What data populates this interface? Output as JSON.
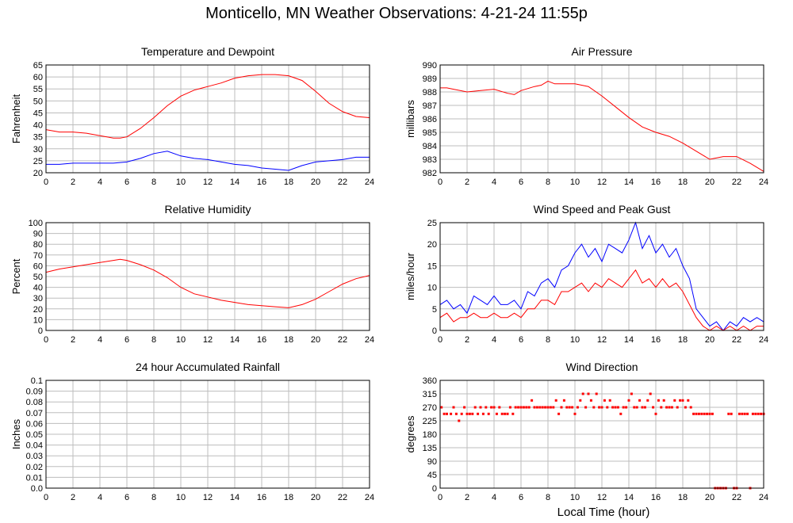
{
  "title": "Monticello, MN Weather Observations: 4-21-24 11:55p",
  "xlabel": "Local Time (hour)",
  "colors": {
    "red": "#ff0000",
    "blue": "#0000ff"
  },
  "chart_data": [
    {
      "type": "line",
      "title": "Temperature and Dewpoint",
      "ylabel": "Fahrenheit",
      "xlim": [
        0,
        24
      ],
      "ylim": [
        20,
        65
      ],
      "xticks": [
        "0",
        "2",
        "4",
        "6",
        "8",
        "10",
        "12",
        "14",
        "16",
        "18",
        "20",
        "22",
        "24"
      ],
      "yticks": [
        "20",
        "25",
        "30",
        "35",
        "40",
        "45",
        "50",
        "55",
        "60",
        "65"
      ],
      "grid": true,
      "series": [
        {
          "color": "#ff0000",
          "x": [
            0,
            1,
            2,
            3,
            4,
            5,
            5.5,
            6,
            7,
            8,
            9,
            10,
            11,
            12,
            13,
            14,
            15,
            16,
            16.5,
            17,
            18,
            19,
            20,
            21,
            22,
            23,
            24
          ],
          "y": [
            38,
            37,
            37,
            36.5,
            35.5,
            34.5,
            34.5,
            35,
            38.5,
            43,
            48,
            52,
            54.5,
            56,
            57.5,
            59.5,
            60.5,
            61,
            61,
            61,
            60.5,
            58.5,
            54,
            49,
            45.5,
            43.5,
            43
          ]
        },
        {
          "color": "#0000ff",
          "x": [
            0,
            1,
            2,
            3,
            4,
            5,
            6,
            7,
            8,
            9,
            10,
            11,
            12,
            13,
            14,
            15,
            16,
            17,
            18,
            19,
            20,
            21,
            22,
            23,
            24
          ],
          "y": [
            23.5,
            23.5,
            24,
            24,
            24,
            24,
            24.5,
            26,
            28,
            29,
            27,
            26,
            25.5,
            24.5,
            23.5,
            23,
            22,
            21.5,
            21,
            23,
            24.5,
            25,
            25.5,
            26.5,
            26.5
          ]
        }
      ]
    },
    {
      "type": "line",
      "title": "Air Pressure",
      "ylabel": "millibars",
      "xlim": [
        0,
        24
      ],
      "ylim": [
        982,
        990
      ],
      "xticks": [
        "0",
        "2",
        "4",
        "6",
        "8",
        "10",
        "12",
        "14",
        "16",
        "18",
        "20",
        "22",
        "24"
      ],
      "yticks": [
        "982",
        "983",
        "984",
        "985",
        "986",
        "987",
        "988",
        "989",
        "990"
      ],
      "grid": true,
      "series": [
        {
          "color": "#ff0000",
          "x": [
            0,
            0.5,
            1,
            2,
            3,
            4,
            5,
            5.5,
            6,
            7,
            7.5,
            8,
            8.5,
            9,
            10,
            11,
            12,
            13,
            14,
            15,
            16,
            17,
            18,
            19,
            19.5,
            20,
            21,
            22,
            23,
            24
          ],
          "y": [
            988.3,
            988.3,
            988.2,
            988,
            988.1,
            988.2,
            987.9,
            987.8,
            988.1,
            988.4,
            988.5,
            988.8,
            988.6,
            988.6,
            988.6,
            988.4,
            987.7,
            986.9,
            986.1,
            985.4,
            985,
            984.7,
            984.2,
            983.6,
            983.3,
            983,
            983.2,
            983.2,
            982.7,
            982.1
          ]
        }
      ]
    },
    {
      "type": "line",
      "title": "Relative Humidity",
      "ylabel": "Percent",
      "xlim": [
        0,
        24
      ],
      "ylim": [
        0,
        100
      ],
      "xticks": [
        "0",
        "2",
        "4",
        "6",
        "8",
        "10",
        "12",
        "14",
        "16",
        "18",
        "20",
        "22",
        "24"
      ],
      "yticks": [
        "0",
        "10",
        "20",
        "30",
        "40",
        "50",
        "60",
        "70",
        "80",
        "90",
        "100"
      ],
      "grid": true,
      "series": [
        {
          "color": "#ff0000",
          "x": [
            0,
            1,
            2,
            3,
            4,
            5,
            5.5,
            6,
            7,
            8,
            9,
            10,
            11,
            12,
            13,
            14,
            15,
            16,
            17,
            18,
            19,
            20,
            21,
            22,
            23,
            24
          ],
          "y": [
            54,
            57,
            59,
            61,
            63,
            65,
            66,
            65,
            61,
            56,
            49,
            40,
            34,
            31,
            28,
            26,
            24,
            23,
            22,
            21,
            24,
            29,
            36,
            43,
            48,
            51
          ]
        }
      ]
    },
    {
      "type": "line",
      "title": "Wind Speed and Peak Gust",
      "ylabel": "miles/hour",
      "xlim": [
        0,
        24
      ],
      "ylim": [
        0,
        25
      ],
      "xticks": [
        "0",
        "2",
        "4",
        "6",
        "8",
        "10",
        "12",
        "14",
        "16",
        "18",
        "20",
        "22",
        "24"
      ],
      "yticks": [
        "0",
        "5",
        "10",
        "15",
        "20",
        "25"
      ],
      "grid": true,
      "series": [
        {
          "color": "#0000ff",
          "x": [
            0,
            0.5,
            1,
            1.5,
            2,
            2.5,
            3,
            3.5,
            4,
            4.5,
            5,
            5.5,
            6,
            6.5,
            7,
            7.5,
            8,
            8.5,
            9,
            9.5,
            10,
            10.5,
            11,
            11.5,
            12,
            12.5,
            13,
            13.5,
            14,
            14.5,
            15,
            15.5,
            16,
            16.5,
            17,
            17.5,
            18,
            18.5,
            19,
            19.5,
            20,
            20.5,
            21,
            21.5,
            22,
            22.5,
            23,
            23.5,
            24
          ],
          "y": [
            6,
            7,
            5,
            6,
            4,
            8,
            7,
            6,
            8,
            6,
            6,
            7,
            5,
            9,
            8,
            11,
            12,
            10,
            14,
            15,
            18,
            20,
            17,
            19,
            16,
            20,
            19,
            18,
            21,
            25,
            19,
            22,
            18,
            20,
            17,
            19,
            15,
            12,
            5,
            3,
            1,
            2,
            0,
            2,
            1,
            3,
            2,
            3,
            2
          ]
        },
        {
          "color": "#ff0000",
          "x": [
            0,
            0.5,
            1,
            1.5,
            2,
            2.5,
            3,
            3.5,
            4,
            4.5,
            5,
            5.5,
            6,
            6.5,
            7,
            7.5,
            8,
            8.5,
            9,
            9.5,
            10,
            10.5,
            11,
            11.5,
            12,
            12.5,
            13,
            13.5,
            14,
            14.5,
            15,
            15.5,
            16,
            16.5,
            17,
            17.5,
            18,
            18.5,
            19,
            19.5,
            20,
            20.5,
            21,
            21.5,
            22,
            22.5,
            23,
            23.5,
            24
          ],
          "y": [
            3,
            4,
            2,
            3,
            3,
            4,
            3,
            3,
            4,
            3,
            3,
            4,
            3,
            5,
            5,
            7,
            7,
            6,
            9,
            9,
            10,
            11,
            9,
            11,
            10,
            12,
            11,
            10,
            12,
            14,
            11,
            12,
            10,
            12,
            10,
            11,
            9,
            6,
            3,
            1,
            0,
            1,
            0,
            1,
            0,
            1,
            0,
            1,
            1
          ]
        }
      ]
    },
    {
      "type": "line",
      "title": "24 hour Accumulated Rainfall",
      "ylabel": "Inches",
      "xlim": [
        0,
        24
      ],
      "ylim": [
        0,
        0.1
      ],
      "xticks": [
        "0",
        "2",
        "4",
        "6",
        "8",
        "10",
        "12",
        "14",
        "16",
        "18",
        "20",
        "22",
        "24"
      ],
      "yticks": [
        "0.0",
        "0.01",
        "0.02",
        "0.03",
        "0.04",
        "0.05",
        "0.06",
        "0.07",
        "0.08",
        "0.09",
        "0.1"
      ],
      "grid": true,
      "series": [
        {
          "color": "#ff0000",
          "x": [
            0,
            24
          ],
          "y": [
            0,
            0
          ]
        }
      ]
    },
    {
      "type": "scatter",
      "title": "Wind Direction",
      "ylabel": "degrees",
      "xlim": [
        0,
        24
      ],
      "ylim": [
        0,
        360
      ],
      "xticks": [
        "0",
        "2",
        "4",
        "6",
        "8",
        "10",
        "12",
        "14",
        "16",
        "18",
        "20",
        "22",
        "24"
      ],
      "yticks": [
        "0",
        "45",
        "90",
        "135",
        "180",
        "225",
        "270",
        "315",
        "360"
      ],
      "grid": true,
      "series": [
        {
          "color": "#ff0000",
          "points": [
            [
              0.1,
              270
            ],
            [
              0.3,
              248
            ],
            [
              0.5,
              248
            ],
            [
              0.8,
              248
            ],
            [
              1.0,
              270
            ],
            [
              1.2,
              248
            ],
            [
              1.4,
              225
            ],
            [
              1.6,
              248
            ],
            [
              1.8,
              270
            ],
            [
              2.0,
              248
            ],
            [
              2.2,
              248
            ],
            [
              2.4,
              248
            ],
            [
              2.6,
              270
            ],
            [
              2.8,
              248
            ],
            [
              3.0,
              270
            ],
            [
              3.2,
              248
            ],
            [
              3.4,
              270
            ],
            [
              3.6,
              248
            ],
            [
              3.8,
              270
            ],
            [
              4.0,
              270
            ],
            [
              4.2,
              248
            ],
            [
              4.4,
              270
            ],
            [
              4.6,
              248
            ],
            [
              4.8,
              248
            ],
            [
              5.0,
              248
            ],
            [
              5.2,
              270
            ],
            [
              5.4,
              248
            ],
            [
              5.6,
              270
            ],
            [
              5.8,
              270
            ],
            [
              6.0,
              270
            ],
            [
              6.2,
              270
            ],
            [
              6.4,
              270
            ],
            [
              6.6,
              270
            ],
            [
              6.8,
              293
            ],
            [
              7.0,
              270
            ],
            [
              7.2,
              270
            ],
            [
              7.4,
              270
            ],
            [
              7.6,
              270
            ],
            [
              7.8,
              270
            ],
            [
              8.0,
              270
            ],
            [
              8.2,
              270
            ],
            [
              8.4,
              270
            ],
            [
              8.6,
              293
            ],
            [
              8.8,
              248
            ],
            [
              9.0,
              270
            ],
            [
              9.2,
              293
            ],
            [
              9.4,
              270
            ],
            [
              9.6,
              270
            ],
            [
              9.8,
              270
            ],
            [
              10.0,
              248
            ],
            [
              10.2,
              270
            ],
            [
              10.4,
              293
            ],
            [
              10.6,
              315
            ],
            [
              10.8,
              270
            ],
            [
              11.0,
              315
            ],
            [
              11.2,
              293
            ],
            [
              11.4,
              270
            ],
            [
              11.6,
              315
            ],
            [
              11.8,
              270
            ],
            [
              12.0,
              270
            ],
            [
              12.2,
              293
            ],
            [
              12.4,
              270
            ],
            [
              12.6,
              293
            ],
            [
              12.8,
              270
            ],
            [
              13.0,
              270
            ],
            [
              13.2,
              270
            ],
            [
              13.4,
              248
            ],
            [
              13.6,
              270
            ],
            [
              13.8,
              270
            ],
            [
              14.0,
              293
            ],
            [
              14.2,
              315
            ],
            [
              14.4,
              270
            ],
            [
              14.6,
              270
            ],
            [
              14.8,
              293
            ],
            [
              15.0,
              270
            ],
            [
              15.2,
              270
            ],
            [
              15.4,
              293
            ],
            [
              15.6,
              315
            ],
            [
              15.8,
              270
            ],
            [
              16.0,
              248
            ],
            [
              16.2,
              293
            ],
            [
              16.4,
              270
            ],
            [
              16.6,
              293
            ],
            [
              16.8,
              270
            ],
            [
              17.0,
              270
            ],
            [
              17.2,
              270
            ],
            [
              17.4,
              293
            ],
            [
              17.6,
              270
            ],
            [
              17.8,
              293
            ],
            [
              18.0,
              293
            ],
            [
              18.2,
              270
            ],
            [
              18.4,
              293
            ],
            [
              18.6,
              270
            ],
            [
              18.8,
              248
            ],
            [
              19.0,
              248
            ],
            [
              19.2,
              248
            ],
            [
              19.4,
              248
            ],
            [
              19.6,
              248
            ],
            [
              19.8,
              248
            ],
            [
              20.0,
              248
            ],
            [
              20.2,
              248
            ],
            [
              20.4,
              0
            ],
            [
              20.6,
              0
            ],
            [
              20.8,
              0
            ],
            [
              21.0,
              0
            ],
            [
              21.2,
              0
            ],
            [
              21.4,
              248
            ],
            [
              21.6,
              248
            ],
            [
              21.8,
              0
            ],
            [
              22.0,
              0
            ],
            [
              22.2,
              248
            ],
            [
              22.4,
              248
            ],
            [
              22.6,
              248
            ],
            [
              22.8,
              248
            ],
            [
              23.0,
              0
            ],
            [
              23.2,
              248
            ],
            [
              23.4,
              248
            ],
            [
              23.6,
              248
            ],
            [
              23.8,
              248
            ],
            [
              24.0,
              248
            ]
          ]
        }
      ]
    }
  ]
}
